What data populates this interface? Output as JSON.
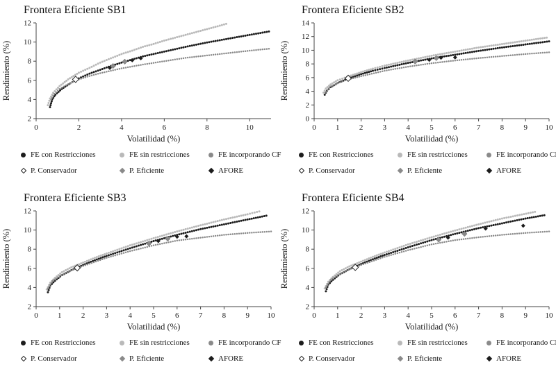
{
  "figure": {
    "background": "#ffffff"
  },
  "legend": {
    "items": [
      {
        "label": "FE con Restricciones",
        "marker": "circle",
        "color": "#1c1c1c"
      },
      {
        "label": "FE sin restricciones",
        "marker": "circle",
        "color": "#b9b9b9"
      },
      {
        "label": "FE incorporando CF",
        "marker": "circle",
        "color": "#8a8a8a"
      },
      {
        "label": "P. Conservador",
        "marker": "diamond-open",
        "color": "#ffffff"
      },
      {
        "label": "P. Eficiente",
        "marker": "diamond",
        "color": "#8a8a8a"
      },
      {
        "label": "AFORE",
        "marker": "diamond",
        "color": "#1c1c1c"
      }
    ]
  },
  "chart_data": [
    {
      "type": "scatter",
      "title": "Frontera Eficiente SB1",
      "xlabel": "Volatilidad (%)",
      "ylabel": "Rendimiento (%)",
      "xlim": [
        0,
        11
      ],
      "ylim": [
        2,
        12
      ],
      "xticks": [
        0,
        2,
        4,
        6,
        8,
        10
      ],
      "yticks": [
        2,
        4,
        6,
        8,
        10,
        12
      ],
      "grid": false,
      "legend_position": "bottom",
      "series": [
        {
          "name": "FE con Restricciones",
          "color": "#1c1c1c",
          "points": [
            [
              0.65,
              3.2
            ],
            [
              0.75,
              4.0
            ],
            [
              0.9,
              4.5
            ],
            [
              1.2,
              5.1
            ],
            [
              1.6,
              5.7
            ],
            [
              2,
              6.2
            ],
            [
              2.5,
              6.7
            ],
            [
              3,
              7.1
            ],
            [
              3.5,
              7.5
            ],
            [
              4,
              7.85
            ],
            [
              5,
              8.5
            ],
            [
              6,
              9.0
            ],
            [
              7,
              9.5
            ],
            [
              8,
              9.95
            ],
            [
              9,
              10.35
            ],
            [
              10,
              10.75
            ],
            [
              10.9,
              11.1
            ]
          ]
        },
        {
          "name": "FE sin restricciones",
          "color": "#b9b9b9",
          "points": [
            [
              0.55,
              3.4
            ],
            [
              0.65,
              4.1
            ],
            [
              0.8,
              4.7
            ],
            [
              1.1,
              5.4
            ],
            [
              1.5,
              6.1
            ],
            [
              2,
              6.8
            ],
            [
              2.5,
              7.3
            ],
            [
              3,
              7.85
            ],
            [
              3.5,
              8.3
            ],
            [
              4,
              8.75
            ],
            [
              4.5,
              9.1
            ],
            [
              5,
              9.5
            ],
            [
              5.5,
              9.8
            ],
            [
              6,
              10.15
            ],
            [
              6.5,
              10.45
            ],
            [
              7,
              10.75
            ],
            [
              7.5,
              11.05
            ],
            [
              8,
              11.35
            ],
            [
              8.5,
              11.65
            ],
            [
              8.9,
              11.9
            ]
          ]
        },
        {
          "name": "FE incorporando CF",
          "color": "#8a8a8a",
          "points": [
            [
              0.7,
              4.0
            ],
            [
              0.85,
              4.6
            ],
            [
              1.1,
              5.1
            ],
            [
              1.5,
              5.6
            ],
            [
              2,
              6.1
            ],
            [
              2.5,
              6.45
            ],
            [
              3,
              6.75
            ],
            [
              3.5,
              7.0
            ],
            [
              4,
              7.25
            ],
            [
              5,
              7.65
            ],
            [
              6,
              8.0
            ],
            [
              7,
              8.35
            ],
            [
              8,
              8.6
            ],
            [
              9,
              8.85
            ],
            [
              10,
              9.1
            ],
            [
              10.9,
              9.3
            ]
          ]
        }
      ],
      "markers": [
        {
          "name": "P. Conservador",
          "type": "diamond-open",
          "color": "#ffffff",
          "points": [
            [
              1.85,
              6.1
            ]
          ]
        },
        {
          "name": "P. Eficiente",
          "type": "diamond",
          "color": "#8a8a8a",
          "points": [
            [
              3.6,
              7.5
            ],
            [
              4.15,
              7.95
            ]
          ]
        },
        {
          "name": "AFORE",
          "type": "diamond",
          "color": "#1c1c1c",
          "points": [
            [
              3.45,
              7.3
            ],
            [
              4.5,
              8.1
            ],
            [
              4.9,
              8.3
            ]
          ]
        }
      ]
    },
    {
      "type": "scatter",
      "title": "Frontera Eficiente SB2",
      "xlabel": "Volatilidad (%)",
      "ylabel": "Rendimiento (%)",
      "xlim": [
        0,
        10
      ],
      "ylim": [
        0,
        14
      ],
      "xticks": [
        0,
        1,
        2,
        3,
        4,
        5,
        6,
        7,
        8,
        9,
        10
      ],
      "yticks": [
        0,
        2,
        4,
        6,
        8,
        10,
        12,
        14
      ],
      "grid": false,
      "legend_position": "bottom",
      "series": [
        {
          "name": "FE con Restricciones",
          "color": "#1c1c1c",
          "points": [
            [
              0.45,
              3.5
            ],
            [
              0.55,
              4.1
            ],
            [
              0.7,
              4.6
            ],
            [
              1,
              5.2
            ],
            [
              1.4,
              5.8
            ],
            [
              2,
              6.5
            ],
            [
              2.5,
              7.0
            ],
            [
              3,
              7.4
            ],
            [
              4,
              8.15
            ],
            [
              5,
              8.8
            ],
            [
              6,
              9.35
            ],
            [
              7,
              9.9
            ],
            [
              8,
              10.4
            ],
            [
              9,
              10.85
            ],
            [
              10,
              11.3
            ]
          ]
        },
        {
          "name": "FE sin restricciones",
          "color": "#b9b9b9",
          "points": [
            [
              0.4,
              3.8
            ],
            [
              0.5,
              4.4
            ],
            [
              0.7,
              5.0
            ],
            [
              1,
              5.6
            ],
            [
              1.4,
              6.1
            ],
            [
              2,
              6.8
            ],
            [
              2.5,
              7.3
            ],
            [
              3,
              7.75
            ],
            [
              4,
              8.5
            ],
            [
              5,
              9.2
            ],
            [
              6,
              9.8
            ],
            [
              7,
              10.4
            ],
            [
              8,
              10.9
            ],
            [
              9,
              11.4
            ],
            [
              9.9,
              11.85
            ]
          ]
        },
        {
          "name": "FE incorporando CF",
          "color": "#8a8a8a",
          "points": [
            [
              0.5,
              3.9
            ],
            [
              0.7,
              4.7
            ],
            [
              1,
              5.2
            ],
            [
              1.4,
              5.7
            ],
            [
              2,
              6.2
            ],
            [
              3,
              7.0
            ],
            [
              4,
              7.6
            ],
            [
              5,
              8.1
            ],
            [
              6,
              8.5
            ],
            [
              7,
              8.85
            ],
            [
              8,
              9.15
            ],
            [
              9,
              9.45
            ],
            [
              10,
              9.7
            ]
          ]
        }
      ],
      "markers": [
        {
          "name": "P. Conservador",
          "type": "diamond-open",
          "color": "#ffffff",
          "points": [
            [
              1.45,
              5.9
            ]
          ]
        },
        {
          "name": "P. Eficiente",
          "type": "diamond",
          "color": "#8a8a8a",
          "points": [
            [
              4.3,
              8.35
            ],
            [
              5.2,
              8.85
            ]
          ]
        },
        {
          "name": "AFORE",
          "type": "diamond",
          "color": "#1c1c1c",
          "points": [
            [
              4.9,
              8.6
            ],
            [
              5.4,
              8.9
            ],
            [
              6.0,
              8.95
            ]
          ]
        }
      ]
    },
    {
      "type": "scatter",
      "title": "Frontera Eficiente SB3",
      "xlabel": "Volatilidad (%)",
      "ylabel": "Rendimiento (%)",
      "xlim": [
        0,
        10
      ],
      "ylim": [
        2,
        12
      ],
      "xticks": [
        0,
        1,
        2,
        3,
        4,
        5,
        6,
        7,
        8,
        9,
        10
      ],
      "yticks": [
        2,
        4,
        6,
        8,
        10,
        12
      ],
      "grid": false,
      "legend_position": "bottom",
      "series": [
        {
          "name": "FE con Restricciones",
          "color": "#1c1c1c",
          "points": [
            [
              0.5,
              3.5
            ],
            [
              0.6,
              4.2
            ],
            [
              0.8,
              4.7
            ],
            [
              1.1,
              5.3
            ],
            [
              1.5,
              5.8
            ],
            [
              2,
              6.35
            ],
            [
              2.5,
              6.85
            ],
            [
              3,
              7.3
            ],
            [
              4,
              8.1
            ],
            [
              5,
              8.85
            ],
            [
              6,
              9.5
            ],
            [
              7,
              10.1
            ],
            [
              8,
              10.6
            ],
            [
              9,
              11.1
            ],
            [
              9.8,
              11.5
            ]
          ]
        },
        {
          "name": "FE sin restricciones",
          "color": "#b9b9b9",
          "points": [
            [
              0.45,
              3.8
            ],
            [
              0.6,
              4.5
            ],
            [
              0.8,
              5.0
            ],
            [
              1.1,
              5.6
            ],
            [
              1.5,
              6.1
            ],
            [
              2,
              6.6
            ],
            [
              2.5,
              7.1
            ],
            [
              3,
              7.55
            ],
            [
              4,
              8.4
            ],
            [
              5,
              9.15
            ],
            [
              6,
              9.85
            ],
            [
              7,
              10.5
            ],
            [
              8,
              11.1
            ],
            [
              9,
              11.65
            ],
            [
              9.5,
              11.95
            ]
          ]
        },
        {
          "name": "FE incorporando CF",
          "color": "#8a8a8a",
          "points": [
            [
              0.5,
              3.9
            ],
            [
              0.7,
              4.7
            ],
            [
              1,
              5.2
            ],
            [
              1.4,
              5.7
            ],
            [
              2,
              6.25
            ],
            [
              3,
              7.1
            ],
            [
              4,
              7.8
            ],
            [
              5,
              8.4
            ],
            [
              6,
              8.9
            ],
            [
              7,
              9.2
            ],
            [
              8,
              9.5
            ],
            [
              9,
              9.7
            ],
            [
              10,
              9.85
            ]
          ]
        }
      ],
      "markers": [
        {
          "name": "P. Conservador",
          "type": "diamond-open",
          "color": "#ffffff",
          "points": [
            [
              1.75,
              6.05
            ]
          ]
        },
        {
          "name": "P. Eficiente",
          "type": "diamond",
          "color": "#8a8a8a",
          "points": [
            [
              4.8,
              8.6
            ],
            [
              5.6,
              9.1
            ]
          ]
        },
        {
          "name": "AFORE",
          "type": "diamond",
          "color": "#1c1c1c",
          "points": [
            [
              5.2,
              8.85
            ],
            [
              6.0,
              9.3
            ],
            [
              6.4,
              9.35
            ]
          ]
        }
      ]
    },
    {
      "type": "scatter",
      "title": "Frontera Eficiente SB4",
      "xlabel": "Volatilidad (%)",
      "ylabel": "Rendimiento (%)",
      "xlim": [
        0,
        10
      ],
      "ylim": [
        2,
        12
      ],
      "xticks": [
        0,
        1,
        2,
        3,
        4,
        5,
        6,
        7,
        8,
        9,
        10
      ],
      "yticks": [
        2,
        4,
        6,
        8,
        10,
        12
      ],
      "grid": false,
      "legend_position": "bottom",
      "series": [
        {
          "name": "FE con Restricciones",
          "color": "#1c1c1c",
          "points": [
            [
              0.5,
              3.6
            ],
            [
              0.6,
              4.3
            ],
            [
              0.8,
              4.8
            ],
            [
              1.1,
              5.4
            ],
            [
              1.5,
              5.9
            ],
            [
              2,
              6.45
            ],
            [
              2.5,
              6.95
            ],
            [
              3,
              7.4
            ],
            [
              4,
              8.2
            ],
            [
              5,
              8.95
            ],
            [
              6,
              9.6
            ],
            [
              7,
              10.2
            ],
            [
              8,
              10.7
            ],
            [
              9,
              11.2
            ],
            [
              9.8,
              11.55
            ]
          ]
        },
        {
          "name": "FE sin restricciones",
          "color": "#b9b9b9",
          "points": [
            [
              0.45,
              3.9
            ],
            [
              0.6,
              4.6
            ],
            [
              0.8,
              5.1
            ],
            [
              1.1,
              5.7
            ],
            [
              1.5,
              6.2
            ],
            [
              2,
              6.7
            ],
            [
              2.5,
              7.2
            ],
            [
              3,
              7.65
            ],
            [
              4,
              8.5
            ],
            [
              5,
              9.25
            ],
            [
              6,
              9.95
            ],
            [
              7,
              10.6
            ],
            [
              8,
              11.2
            ],
            [
              9.4,
              11.9
            ]
          ]
        },
        {
          "name": "FE incorporando CF",
          "color": "#8a8a8a",
          "points": [
            [
              0.5,
              4.0
            ],
            [
              0.7,
              4.8
            ],
            [
              1,
              5.3
            ],
            [
              1.4,
              5.8
            ],
            [
              2,
              6.35
            ],
            [
              3,
              7.2
            ],
            [
              4,
              7.9
            ],
            [
              5,
              8.5
            ],
            [
              6,
              8.95
            ],
            [
              7,
              9.25
            ],
            [
              8,
              9.5
            ],
            [
              9,
              9.7
            ],
            [
              10,
              9.85
            ]
          ]
        }
      ],
      "markers": [
        {
          "name": "P. Conservador",
          "type": "diamond-open",
          "color": "#ffffff",
          "points": [
            [
              1.75,
              6.1
            ]
          ]
        },
        {
          "name": "P. Eficiente",
          "type": "diamond",
          "color": "#8a8a8a",
          "points": [
            [
              5.3,
              9.0
            ],
            [
              6.4,
              9.6
            ]
          ]
        },
        {
          "name": "AFORE",
          "type": "diamond",
          "color": "#1c1c1c",
          "points": [
            [
              5.7,
              9.2
            ],
            [
              7.3,
              10.15
            ],
            [
              8.9,
              10.45
            ]
          ]
        }
      ]
    }
  ]
}
